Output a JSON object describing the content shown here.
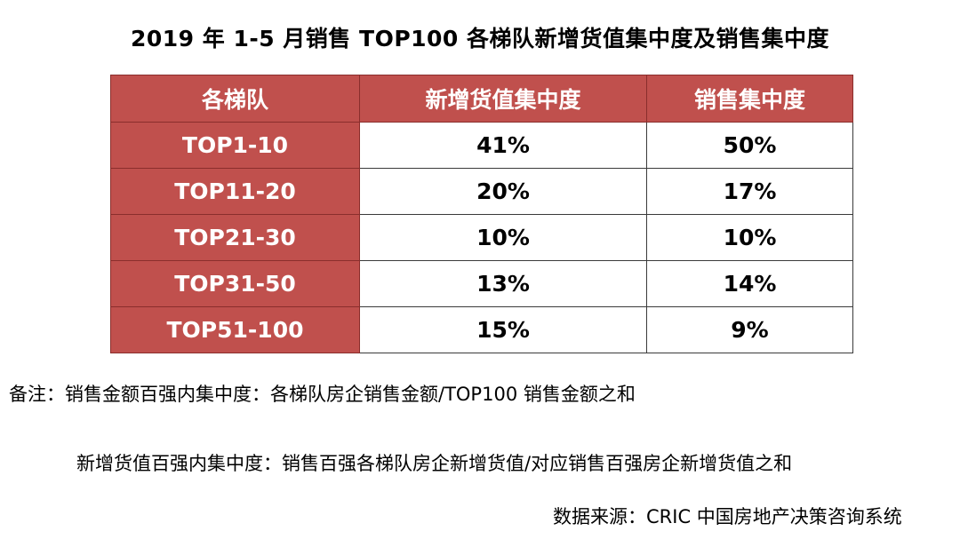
{
  "chart_data": {
    "type": "table",
    "title": "2019 年 1-5 月销售 TOP100 各梯队新增货值集中度及销售集中度",
    "columns": [
      "各梯队",
      "新增货值集中度",
      "销售集中度"
    ],
    "rows": [
      {
        "tier": "TOP1-10",
        "new_value": "41%",
        "sales": "50%"
      },
      {
        "tier": "TOP11-20",
        "new_value": "20%",
        "sales": "17%"
      },
      {
        "tier": "TOP21-30",
        "new_value": "10%",
        "sales": "10%"
      },
      {
        "tier": "TOP31-50",
        "new_value": "13%",
        "sales": "14%"
      },
      {
        "tier": "TOP51-100",
        "new_value": "15%",
        "sales": "9%"
      }
    ]
  },
  "notes": {
    "line1": "备注：销售金额百强内集中度：各梯队房企销售金额/TOP100 销售金额之和",
    "line2": "新增货值百强内集中度：销售百强各梯队房企新增货值/对应销售百强房企新增货值之和"
  },
  "source": "数据来源：CRIC 中国房地产决策咨询系统",
  "colors": {
    "header_fill": "#c0504d",
    "header_text": "#ffffff"
  }
}
